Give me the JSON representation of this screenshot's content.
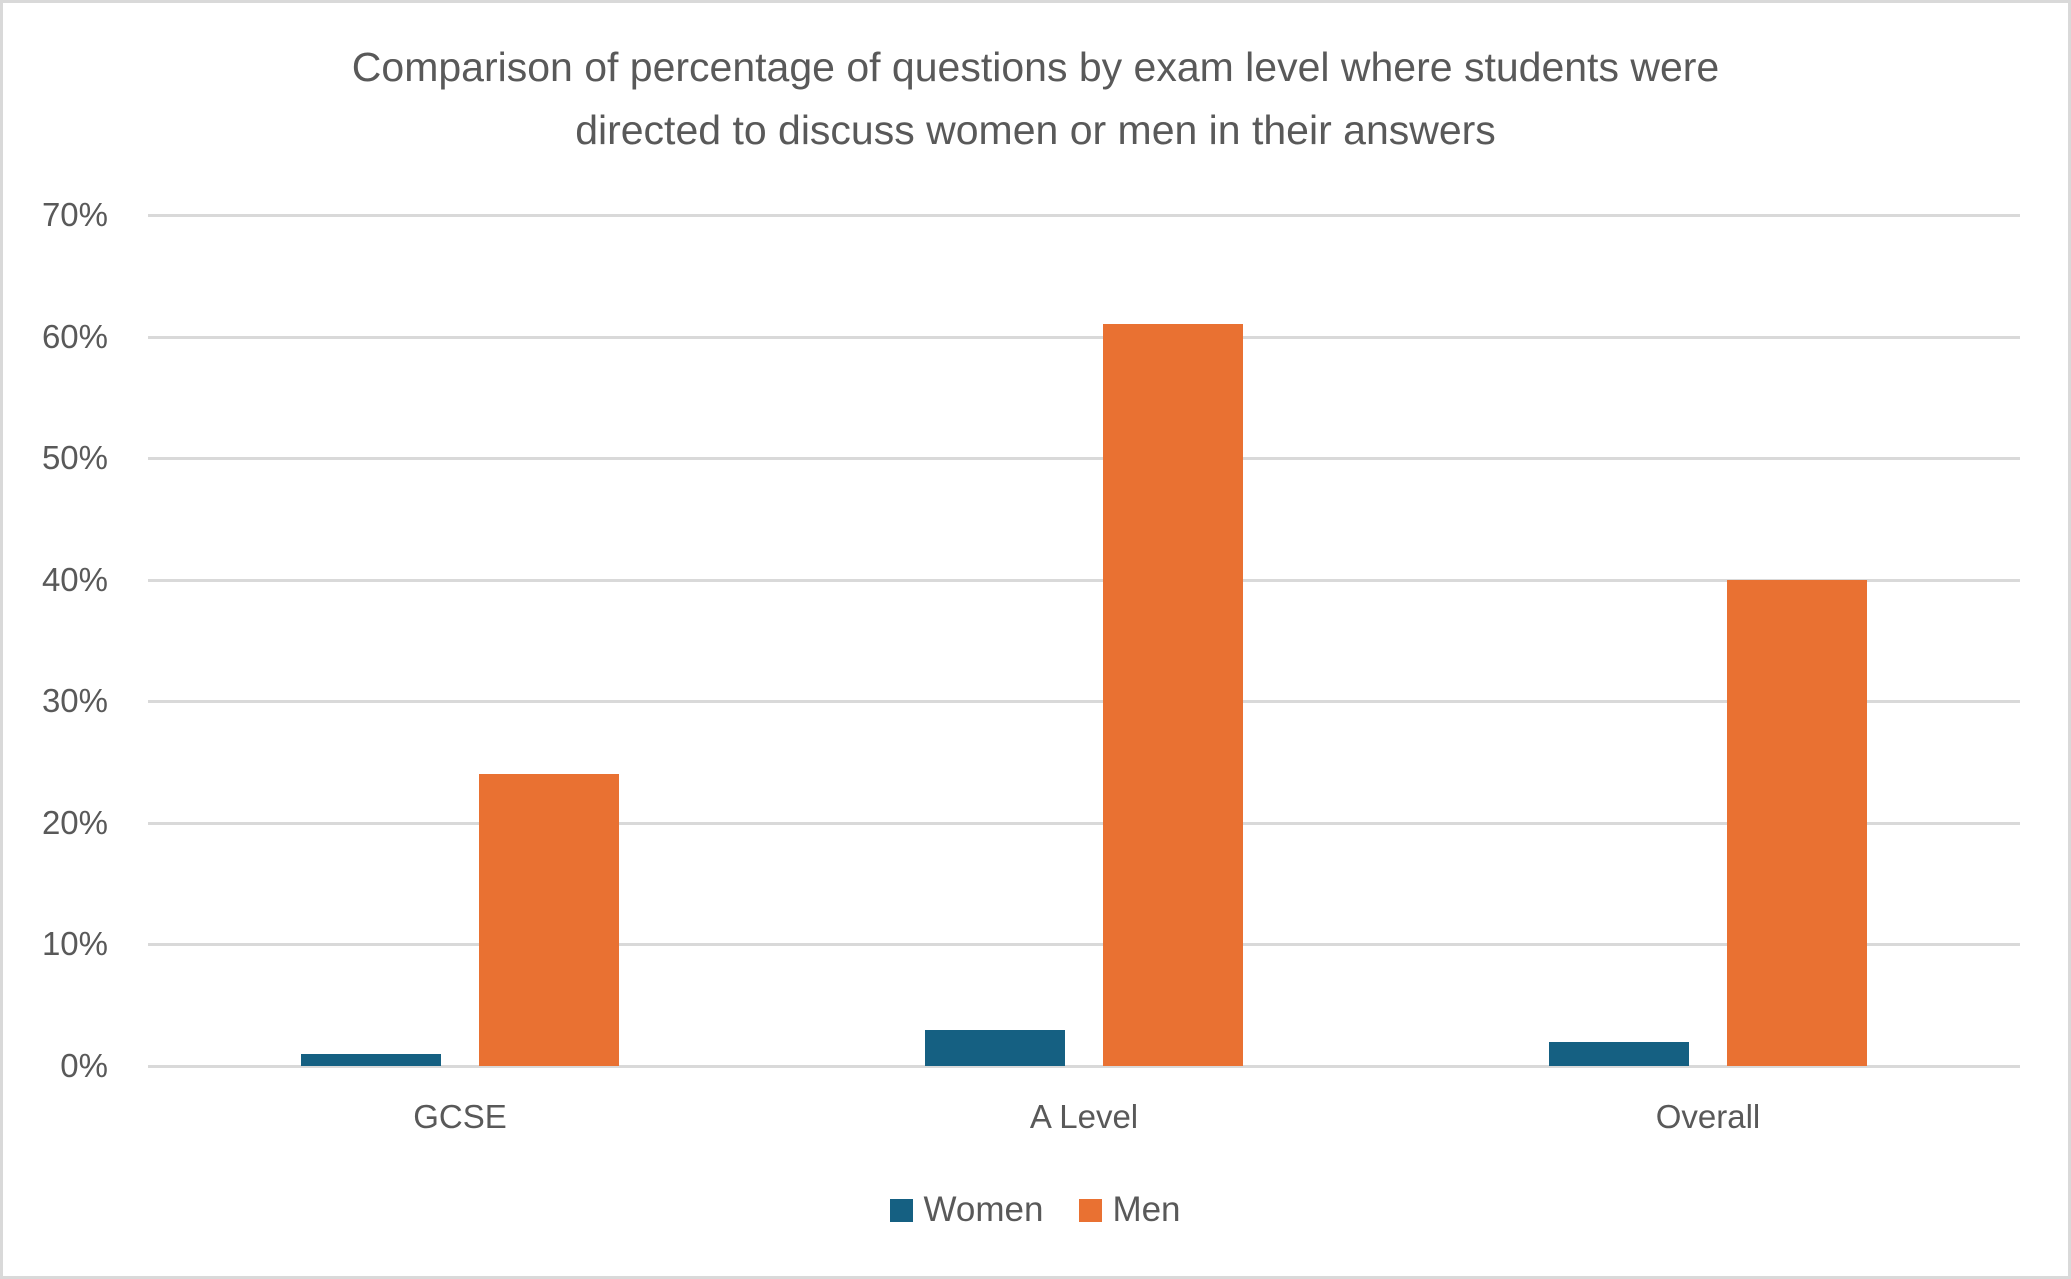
{
  "chart_data": {
    "type": "bar",
    "title": "Comparison of percentage of questions by exam level where students were directed to discuss women or men in their answers",
    "title_lines": [
      "Comparison of percentage of questions by exam level where students were",
      "directed to discuss women or men in their answers"
    ],
    "categories": [
      "GCSE",
      "A Level",
      "Overall"
    ],
    "series": [
      {
        "name": "Women",
        "color": "#156082",
        "values": [
          1,
          3,
          2
        ]
      },
      {
        "name": "Men",
        "color": "#E97132",
        "values": [
          24,
          61,
          40
        ]
      }
    ],
    "xlabel": "",
    "ylabel": "",
    "ylim": [
      0,
      70
    ],
    "yticks": [
      "0%",
      "10%",
      "20%",
      "30%",
      "40%",
      "50%",
      "60%",
      "70%"
    ],
    "grid": true,
    "legend_position": "bottom"
  }
}
